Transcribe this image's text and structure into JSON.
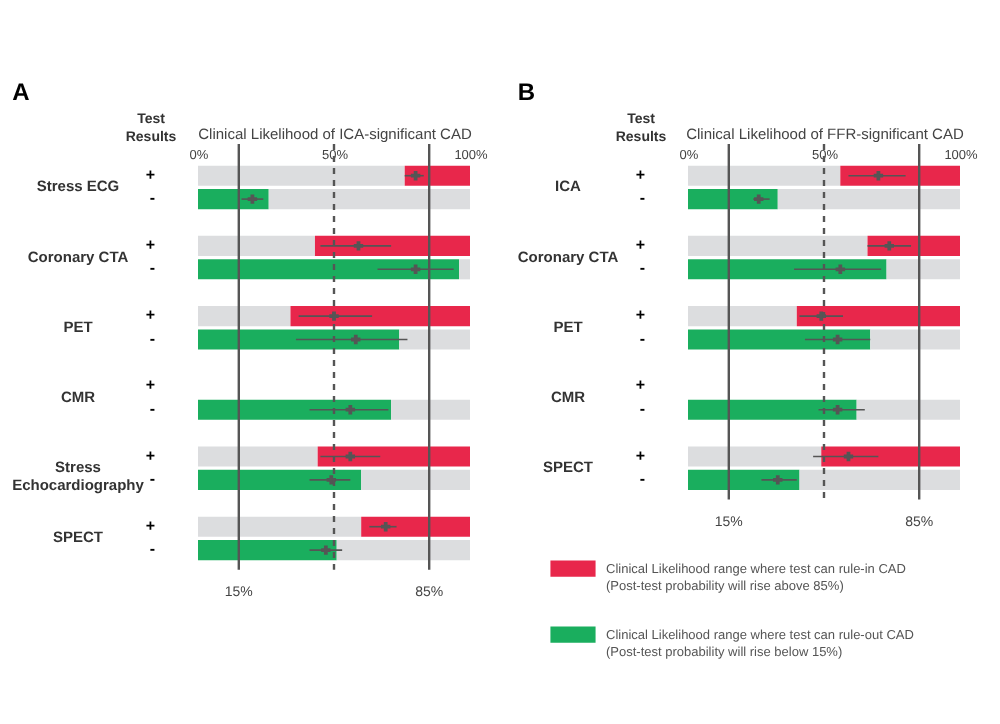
{
  "chart_data": [
    {
      "type": "bar",
      "orientation": "horizontal",
      "stacked": true,
      "title": "A",
      "xlabel": "Clinical Likelihood of ICA-significant CAD",
      "ylabel": "Test Results",
      "categories": [
        "+",
        "-",
        "+",
        "-",
        "+",
        "-",
        "+",
        "-",
        "+",
        "-",
        "+",
        "-"
      ],
      "annotations": [
        "Stress ECG",
        "Coronary CTA",
        "PET",
        "CMR",
        "Stress Echocardiography",
        "SPECT"
      ],
      "series": [
        {
          "color": "#dcdddf",
          "values": [
            76,
            null,
            43,
            null,
            34,
            null,
            null,
            null,
            44,
            null,
            60,
            null
          ]
        },
        {
          "color": "#e8274b",
          "values": [
            24,
            null,
            57,
            null,
            66,
            null,
            null,
            null,
            56,
            null,
            40,
            null
          ]
        },
        {
          "color": "#1aae5e",
          "values": [
            null,
            26,
            null,
            96,
            null,
            74,
            null,
            71,
            null,
            60,
            null,
            51
          ]
        },
        {
          "color": "#dcdddf",
          "values": [
            null,
            74,
            null,
            4,
            null,
            26,
            null,
            29,
            null,
            40,
            null,
            49
          ]
        },
        {
          "type": "scatter",
          "color": "#555555",
          "values": [
            80,
            20,
            59,
            80,
            50,
            58,
            null,
            56,
            56,
            49,
            69,
            47
          ],
          "errors": [
            [
              76,
              83
            ],
            [
              16,
              24
            ],
            [
              45,
              71
            ],
            [
              66,
              94
            ],
            [
              37,
              64
            ],
            [
              36,
              77
            ],
            null,
            [
              41,
              70
            ],
            [
              45,
              67
            ],
            [
              41,
              56
            ],
            [
              63,
              73
            ],
            [
              41,
              53
            ]
          ]
        }
      ],
      "xlim": [
        0,
        100
      ],
      "xticks": [
        {
          "value": 0,
          "label": "0%"
        },
        {
          "value": 50,
          "label": "50%"
        },
        {
          "value": 100,
          "label": "100%"
        }
      ],
      "ref_lines": [
        {
          "axis": "x",
          "value": 15,
          "label": "15%",
          "color": "#555555"
        },
        {
          "axis": "x",
          "value": 50,
          "label": null,
          "color": "#555555",
          "line_style": "dashed"
        },
        {
          "axis": "x",
          "value": 85,
          "label": "85%",
          "color": "#555555"
        }
      ],
      "marker": "cross"
    },
    {
      "type": "bar",
      "orientation": "horizontal",
      "stacked": true,
      "title": "B",
      "xlabel": "Clinical Likelihood of FFR-significant CAD",
      "ylabel": "Test Results",
      "categories": [
        "+",
        "-",
        "+",
        "-",
        "+",
        "-",
        "+",
        "-",
        "+",
        "-"
      ],
      "annotations": [
        "ICA",
        "Coronary CTA",
        "PET",
        "CMR",
        "SPECT"
      ],
      "series": [
        {
          "color": "#dcdddf",
          "values": [
            56,
            null,
            66,
            null,
            40,
            null,
            null,
            null,
            49,
            null
          ]
        },
        {
          "name": "Clinical Likelihood range where test can rule-in CAD (Post-test probability will rise above 85%)",
          "color": "#e8274b",
          "values": [
            44,
            null,
            34,
            null,
            60,
            null,
            null,
            null,
            51,
            null
          ]
        },
        {
          "name": "Clinical Likelihood range where test can rule-out CAD (Post-test probability will rise below 15%)",
          "color": "#1aae5e",
          "values": [
            null,
            33,
            null,
            73,
            null,
            67,
            null,
            62,
            null,
            41
          ]
        },
        {
          "color": "#dcdddf",
          "values": [
            null,
            67,
            null,
            27,
            null,
            33,
            null,
            38,
            null,
            59
          ]
        },
        {
          "type": "scatter",
          "color": "#555555",
          "values": [
            70,
            26,
            74,
            56,
            49,
            55,
            null,
            55,
            59,
            33
          ],
          "errors": [
            [
              59,
              80
            ],
            [
              24,
              30
            ],
            [
              66,
              82
            ],
            [
              39,
              71
            ],
            [
              41,
              57
            ],
            [
              43,
              67
            ],
            null,
            [
              48,
              65
            ],
            [
              46,
              70
            ],
            [
              27,
              40
            ]
          ]
        }
      ],
      "xlim": [
        0,
        100
      ],
      "xticks": [
        {
          "value": 0,
          "label": "0%"
        },
        {
          "value": 50,
          "label": "50%"
        },
        {
          "value": 100,
          "label": "100%"
        }
      ],
      "ref_lines": [
        {
          "axis": "x",
          "value": 15,
          "label": "15%",
          "color": "#555555"
        },
        {
          "axis": "x",
          "value": 50,
          "label": null,
          "color": "#555555",
          "line_style": "dashed"
        },
        {
          "axis": "x",
          "value": 85,
          "label": "85%",
          "color": "#555555"
        }
      ],
      "marker": "cross",
      "legend": "bottom"
    }
  ]
}
